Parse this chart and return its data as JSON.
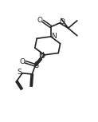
{
  "background": "#ffffff",
  "line_color": "#222222",
  "line_width": 1.2,
  "figsize": [
    1.23,
    1.53
  ],
  "dpi": 100,
  "xlim": [
    0,
    10
  ],
  "ylim": [
    0,
    13
  ]
}
